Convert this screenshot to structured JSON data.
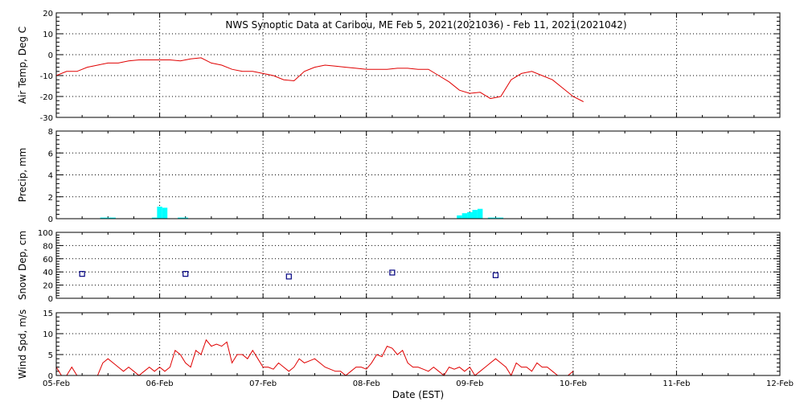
{
  "title": "NWS Synoptic Data at Caribou, ME   Feb  5, 2021(2021036) - Feb 11, 2021(2021042)",
  "x_axis": {
    "label": "Date (EST)",
    "ticks": [
      "05-Feb",
      "06-Feb",
      "07-Feb",
      "08-Feb",
      "09-Feb",
      "10-Feb",
      "11-Feb",
      "12-Feb"
    ]
  },
  "colors": {
    "temp": "#e00000",
    "precip": "#00ffff",
    "snow": "#000080",
    "wind": "#e00000",
    "axis": "#000000"
  },
  "chart_data": [
    {
      "type": "line",
      "ylabel": "Air Temp, Deg C",
      "ylim": [
        -30,
        20
      ],
      "yticks": [
        20,
        10,
        0,
        -10,
        -20,
        -30
      ],
      "grid": true,
      "series": [
        {
          "x": [
            0,
            0.1,
            0.2,
            0.3,
            0.4,
            0.5,
            0.6,
            0.7,
            0.8,
            0.9,
            1.0,
            1.1,
            1.2,
            1.3,
            1.4,
            1.5,
            1.6,
            1.7,
            1.8,
            1.9,
            2.0,
            2.1,
            2.2,
            2.3,
            2.4,
            2.5,
            2.6,
            2.7,
            2.8,
            2.9,
            3.0,
            3.1,
            3.2,
            3.3,
            3.4,
            3.5,
            3.6,
            3.7,
            3.8,
            3.9,
            4.0,
            4.1,
            4.2,
            4.3,
            4.4,
            4.5,
            4.6,
            4.7,
            4.8,
            4.9,
            5.0,
            5.1
          ],
          "values": [
            -10,
            -8,
            -8,
            -6,
            -5,
            -4,
            -4,
            -3,
            -2.5,
            -2.5,
            -2.5,
            -2.5,
            -3,
            -2,
            -1.5,
            -4,
            -5,
            -7,
            -8,
            -8,
            -9,
            -10,
            -12,
            -12.5,
            -8,
            -6,
            -5,
            -5.5,
            -6,
            -6.5,
            -7,
            -7,
            -7,
            -6.5,
            -6.5,
            -7,
            -7,
            -10,
            -13,
            -17,
            -18.5,
            -18,
            -21,
            -20,
            -12,
            -9,
            -8,
            -10,
            -12,
            -16,
            -20,
            -22.5
          ]
        }
      ]
    },
    {
      "type": "bar",
      "ylabel": "Precip, mm",
      "ylim": [
        0,
        8
      ],
      "yticks": [
        8,
        6,
        4,
        2,
        0
      ],
      "grid": true,
      "series": [
        {
          "x": [
            0.45,
            0.5,
            0.55,
            0.95,
            1.0,
            1.05,
            1.2,
            1.25,
            3.9,
            3.95,
            4.0,
            4.05,
            4.1,
            4.2,
            4.25,
            4.3
          ],
          "values": [
            0.1,
            0.1,
            0.1,
            0.1,
            1.1,
            1.0,
            0.1,
            0.1,
            0.3,
            0.5,
            0.6,
            0.8,
            0.9,
            0.1,
            0.1,
            0.1
          ]
        }
      ]
    },
    {
      "type": "scatter",
      "ylabel": "Snow Dep, cm",
      "ylim": [
        0,
        100
      ],
      "yticks": [
        100,
        80,
        60,
        40,
        20,
        0
      ],
      "grid": true,
      "series": [
        {
          "x": [
            0.25,
            1.25,
            2.25,
            3.25,
            4.25
          ],
          "values": [
            37,
            37,
            33,
            39,
            35
          ]
        }
      ]
    },
    {
      "type": "line",
      "ylabel": "Wind Spd, m/s",
      "ylim": [
        0,
        15
      ],
      "yticks": [
        15,
        10,
        5,
        0
      ],
      "grid": true,
      "series": [
        {
          "x": [
            0,
            0.05,
            0.1,
            0.15,
            0.2,
            0.25,
            0.3,
            0.35,
            0.4,
            0.45,
            0.5,
            0.55,
            0.6,
            0.65,
            0.7,
            0.75,
            0.8,
            0.85,
            0.9,
            0.95,
            1.0,
            1.05,
            1.1,
            1.15,
            1.2,
            1.25,
            1.3,
            1.35,
            1.4,
            1.45,
            1.5,
            1.55,
            1.6,
            1.65,
            1.7,
            1.75,
            1.8,
            1.85,
            1.9,
            1.95,
            2.0,
            2.05,
            2.1,
            2.15,
            2.2,
            2.25,
            2.3,
            2.35,
            2.4,
            2.45,
            2.5,
            2.55,
            2.6,
            2.65,
            2.7,
            2.75,
            2.8,
            2.85,
            2.9,
            2.95,
            3.0,
            3.05,
            3.1,
            3.15,
            3.2,
            3.25,
            3.3,
            3.35,
            3.4,
            3.45,
            3.5,
            3.55,
            3.6,
            3.65,
            3.7,
            3.75,
            3.8,
            3.85,
            3.9,
            3.95,
            4.0,
            4.05,
            4.1,
            4.15,
            4.2,
            4.25,
            4.3,
            4.35,
            4.4,
            4.45,
            4.5,
            4.55,
            4.6,
            4.65,
            4.7,
            4.75,
            4.8,
            4.85,
            4.9,
            4.95,
            5.0
          ],
          "values": [
            2,
            0,
            0,
            2,
            0,
            0,
            0,
            0,
            0,
            3,
            4,
            3,
            2,
            1,
            2,
            1,
            0,
            1,
            2,
            1,
            2,
            1,
            2,
            6,
            5,
            3,
            2,
            6,
            5,
            8.5,
            7,
            7.5,
            7,
            8,
            3,
            5,
            5,
            4,
            6,
            4,
            2,
            2,
            1.5,
            3,
            2,
            1,
            2,
            4,
            3,
            3.5,
            4,
            3,
            2,
            1.5,
            1,
            1,
            0,
            1,
            2,
            2,
            1.5,
            3,
            5,
            4.5,
            7,
            6.5,
            5,
            6,
            3,
            2,
            2,
            1.5,
            1,
            2,
            1,
            0,
            2,
            1.5,
            2,
            1,
            2,
            0,
            1,
            2,
            3,
            4,
            3,
            2,
            0,
            3,
            2,
            2,
            1,
            3,
            2,
            2,
            1,
            0,
            0,
            0,
            1
          ]
        }
      ]
    }
  ]
}
